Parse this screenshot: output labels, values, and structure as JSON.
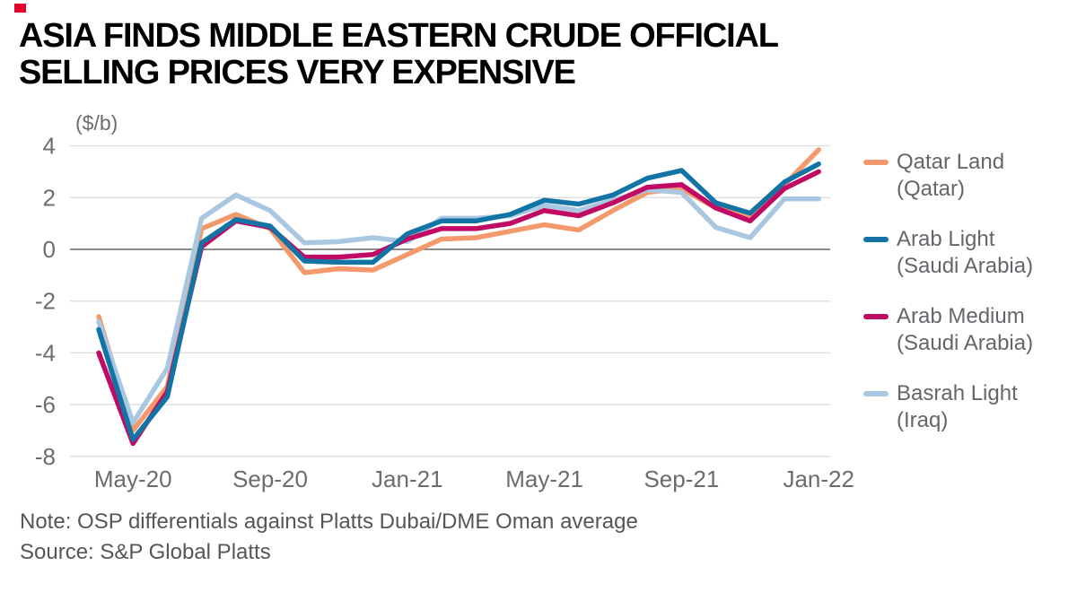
{
  "brand": {
    "red_square_color": "#e4002b"
  },
  "title": {
    "line1": "ASIA FINDS MIDDLE EASTERN CRUDE OFFICIAL",
    "line2": "SELLING PRICES VERY EXPENSIVE"
  },
  "chart_data": {
    "type": "line",
    "unit_label": "($/b)",
    "x": [
      "Apr-20",
      "May-20",
      "Jun-20",
      "Jul-20",
      "Aug-20",
      "Sep-20",
      "Oct-20",
      "Nov-20",
      "Dec-20",
      "Jan-21",
      "Feb-21",
      "Mar-21",
      "Apr-21",
      "May-21",
      "Jun-21",
      "Jul-21",
      "Aug-21",
      "Sep-21",
      "Oct-21",
      "Nov-21",
      "Dec-21",
      "Jan-22"
    ],
    "x_tick_labels": [
      "May-20",
      "Sep-20",
      "Jan-21",
      "May-21",
      "Sep-21",
      "Jan-22"
    ],
    "x_tick_indices": [
      1,
      5,
      9,
      13,
      17,
      21
    ],
    "y_ticks": [
      4,
      2,
      0,
      -2,
      -4,
      -6,
      -8
    ],
    "ylim": [
      -8,
      4
    ],
    "grid": true,
    "zero_line": true,
    "legend_position": "right",
    "series": [
      {
        "name": "Qatar Land (Qatar)",
        "legend_line1": "Qatar Land",
        "legend_line2": "(Qatar)",
        "color": "#f4996c",
        "values": [
          -2.6,
          -7.0,
          -5.3,
          0.8,
          1.35,
          0.8,
          -0.9,
          -0.75,
          -0.8,
          -0.2,
          0.4,
          0.45,
          0.7,
          0.95,
          0.75,
          1.5,
          2.2,
          2.35,
          1.6,
          1.25,
          2.5,
          3.85
        ]
      },
      {
        "name": "Arab Light (Saudi Arabia)",
        "legend_line1": "Arab Light",
        "legend_line2": "(Saudi Arabia)",
        "color": "#1274a5",
        "values": [
          -3.1,
          -7.35,
          -5.7,
          0.25,
          1.15,
          0.9,
          -0.45,
          -0.5,
          -0.5,
          0.6,
          1.1,
          1.1,
          1.35,
          1.9,
          1.75,
          2.1,
          2.75,
          3.05,
          1.8,
          1.4,
          2.6,
          3.3
        ]
      },
      {
        "name": "Arab Medium (Saudi Arabia)",
        "legend_line1": "Arab Medium",
        "legend_line2": "(Saudi Arabia)",
        "color": "#c00a64",
        "values": [
          -4.0,
          -7.5,
          -5.5,
          0.1,
          1.1,
          0.85,
          -0.3,
          -0.3,
          -0.2,
          0.4,
          0.8,
          0.8,
          1.0,
          1.5,
          1.3,
          1.8,
          2.4,
          2.5,
          1.6,
          1.1,
          2.35,
          3.0
        ]
      },
      {
        "name": "Basrah Light (Iraq)",
        "legend_line1": "Basrah Light",
        "legend_line2": "(Iraq)",
        "color": "#a9c7e0",
        "values": [
          -2.8,
          -6.7,
          -4.6,
          1.2,
          2.1,
          1.5,
          0.25,
          0.3,
          0.45,
          0.3,
          1.2,
          1.2,
          1.3,
          1.7,
          1.5,
          1.9,
          2.3,
          2.2,
          0.85,
          0.45,
          1.95,
          1.95
        ]
      }
    ],
    "colors": {
      "gridline": "#dedede",
      "zero_line": "#7c7c7c",
      "tick_label": "#6a6d70"
    }
  },
  "footer": {
    "note": "Note: OSP differentials against Platts Dubai/DME Oman average",
    "source": "Source: S&P Global Platts"
  }
}
